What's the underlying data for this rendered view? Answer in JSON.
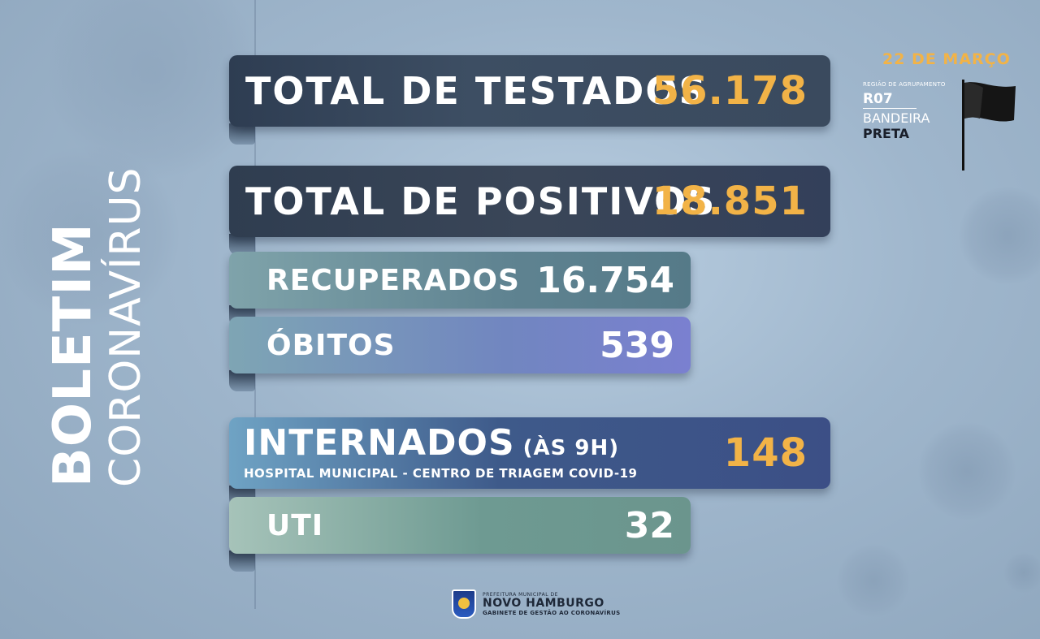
{
  "side_title": {
    "bold": "BOLETIM",
    "light": "CORONAVÍRUS"
  },
  "stats": {
    "testados": {
      "label": "TOTAL DE TESTADOS",
      "value": "56.178"
    },
    "positivos": {
      "label": "TOTAL DE POSITIVOS",
      "value": "18.851"
    },
    "recuperados": {
      "label": "RECUPERADOS",
      "value": "16.754"
    },
    "obitos": {
      "label": "ÓBITOS",
      "value": "539"
    },
    "internados": {
      "label": "INTERNADOS",
      "note": "(ÀS 9H)",
      "subtitle": "HOSPITAL MUNICIPAL - CENTRO DE TRIAGEM COVID-19",
      "value": "148"
    },
    "uti": {
      "label": "UTI",
      "value": "32"
    }
  },
  "date": "22 DE MARÇO",
  "region": {
    "heading": "REGIÃO DE AGRUPAMENTO",
    "code": "R07",
    "flag_label": "BANDEIRA",
    "flag_color": "PRETA"
  },
  "logo": {
    "line1": "PREFEITURA MUNICIPAL DE",
    "line2": "NOVO HAMBURGO",
    "line3": "GABINETE DE GESTÃO AO CORONAVÍRUS"
  },
  "colors": {
    "accent": "#f2b347",
    "flag": "#111111"
  },
  "icons": {
    "flag": "black-flag-icon",
    "crest": "city-crest-icon"
  }
}
